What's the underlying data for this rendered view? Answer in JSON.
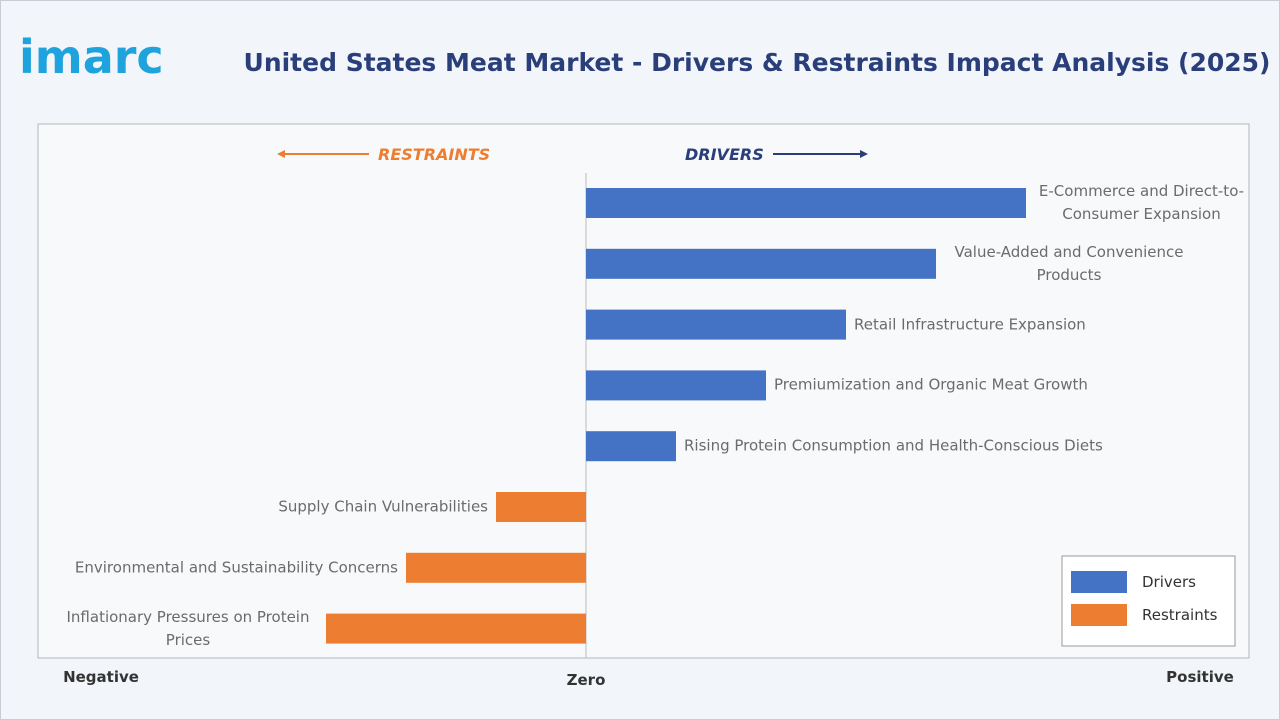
{
  "logo": "imarc",
  "chart_data": {
    "type": "bar",
    "orientation": "horizontal",
    "title": "United States Meat Market - Drivers & Restraints Impact Analysis (2025)",
    "annotations": [
      "RESTRAINTS",
      "DRIVERS"
    ],
    "categories": [
      "E-Commerce and Direct-to-Consumer Expansion",
      "Value-Added and Convenience Products",
      "Retail Infrastructure Expansion",
      "Premiumization and Organic Meat Growth",
      "Rising Protein Consumption and Health-Conscious Diets",
      "Supply Chain Vulnerabilities",
      "Environmental and Sustainability Concerns",
      "Inflationary Pressures on Protein Prices"
    ],
    "series": [
      {
        "name": "Drivers",
        "color": "#4472c4",
        "values": [
          4.4,
          3.5,
          2.6,
          1.8,
          0.9,
          null,
          null,
          null
        ]
      },
      {
        "name": "Restraints",
        "color": "#ed7d31",
        "values": [
          null,
          null,
          null,
          null,
          null,
          -0.9,
          -1.8,
          -2.6
        ]
      }
    ],
    "xlim": [
      -5.47,
      6.63
    ],
    "xticks": [
      {
        "value": -4.85,
        "label": "Negative"
      },
      {
        "value": 0,
        "label": "Zero"
      },
      {
        "value": 6.14,
        "label": "Positive"
      }
    ],
    "legend": "bottom-right"
  }
}
